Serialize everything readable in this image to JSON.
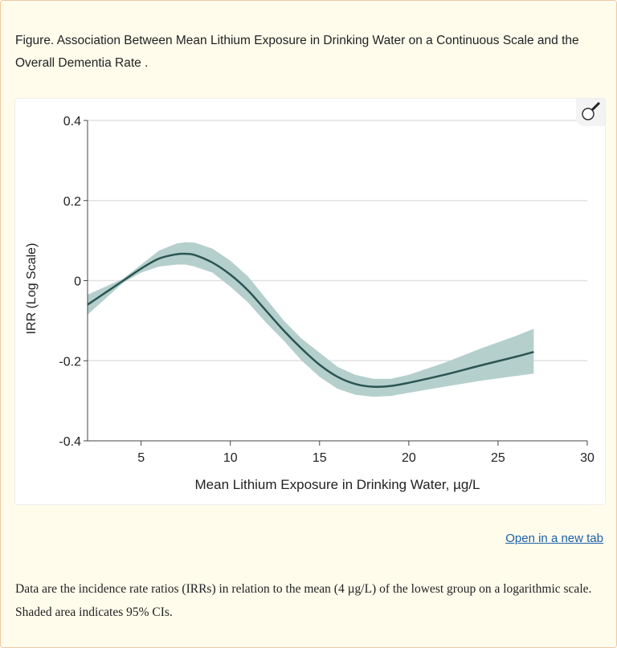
{
  "caption": "Figure. Association Between Mean Lithium Exposure in Drinking Water on a Continuous Scale and the Overall Dementia Rate .",
  "open_link": "Open in a new tab",
  "note": "Data are the incidence rate ratios (IRRs) in relation to the mean (4 µg/L) of the lowest group on a logarithmic scale. Shaded area indicates 95% CIs.",
  "zoom_icon": "magnifier-icon",
  "chart_data": {
    "type": "line",
    "xlabel": "Mean Lithium Exposure in Drinking Water, µg/L",
    "ylabel": "IRR (Log Scale)",
    "xlim": [
      2,
      30
    ],
    "ylim": [
      -0.4,
      0.4
    ],
    "xticks": [
      5,
      10,
      15,
      20,
      25,
      30
    ],
    "xtick_labels": [
      "5",
      "10",
      "15",
      "20",
      "25",
      "30"
    ],
    "yticks": [
      0.4,
      0.2,
      0,
      -0.2,
      -0.4
    ],
    "ytick_labels": [
      "0.4",
      "0.2",
      "0",
      "-0.2",
      "-0.4"
    ],
    "grid": "horizontal",
    "line_color": "#2a5552",
    "band_color": "#b5cfcd",
    "x": [
      2,
      4,
      5,
      6,
      7,
      7.5,
      8,
      9,
      10,
      11,
      12,
      13,
      14,
      15,
      16,
      17,
      18,
      19,
      20,
      22,
      24,
      26,
      27
    ],
    "y": [
      -0.06,
      0.0,
      0.03,
      0.055,
      0.066,
      0.067,
      0.064,
      0.045,
      0.015,
      -0.025,
      -0.075,
      -0.125,
      -0.17,
      -0.21,
      -0.24,
      -0.258,
      -0.265,
      -0.263,
      -0.255,
      -0.235,
      -0.212,
      -0.19,
      -0.178
    ],
    "ci_lower": [
      -0.085,
      -0.005,
      0.02,
      0.035,
      0.04,
      0.04,
      0.035,
      0.02,
      -0.015,
      -0.055,
      -0.105,
      -0.15,
      -0.2,
      -0.24,
      -0.27,
      -0.285,
      -0.29,
      -0.288,
      -0.28,
      -0.265,
      -0.25,
      -0.238,
      -0.232
    ],
    "ci_upper": [
      -0.035,
      0.005,
      0.04,
      0.075,
      0.093,
      0.096,
      0.095,
      0.08,
      0.05,
      0.01,
      -0.045,
      -0.1,
      -0.145,
      -0.18,
      -0.215,
      -0.235,
      -0.245,
      -0.245,
      -0.235,
      -0.205,
      -0.17,
      -0.138,
      -0.12
    ]
  }
}
